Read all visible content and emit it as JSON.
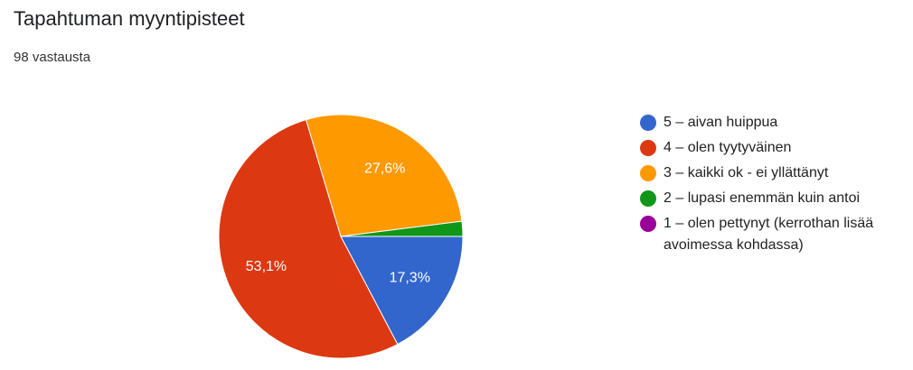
{
  "chart_data": {
    "type": "pie",
    "title": "Tapahtuman myyntipisteet",
    "subtitle": "98 vastausta",
    "series": [
      {
        "name": "5 – aivan huippua",
        "color": "#3366cc",
        "values": [
          17.3
        ],
        "value_labels": [
          "17,3%"
        ]
      },
      {
        "name": "4 – olen tyytyväinen",
        "color": "#dc3912",
        "values": [
          53.1
        ],
        "value_labels": [
          "53,1%"
        ]
      },
      {
        "name": "3 – kaikki ok - ei yllättänyt",
        "color": "#ff9900",
        "values": [
          27.6
        ],
        "value_labels": [
          "27,6%"
        ]
      },
      {
        "name": "2 – lupasi enemmän kuin antoi",
        "color": "#109618",
        "values": [
          2.0
        ],
        "value_labels": [
          null
        ]
      },
      {
        "name": "1 – olen pettynyt (kerrothan lisää avoimessa kohdassa)",
        "color": "#990099",
        "values": [
          0
        ],
        "value_labels": [
          null
        ]
      }
    ],
    "legend": "right"
  }
}
